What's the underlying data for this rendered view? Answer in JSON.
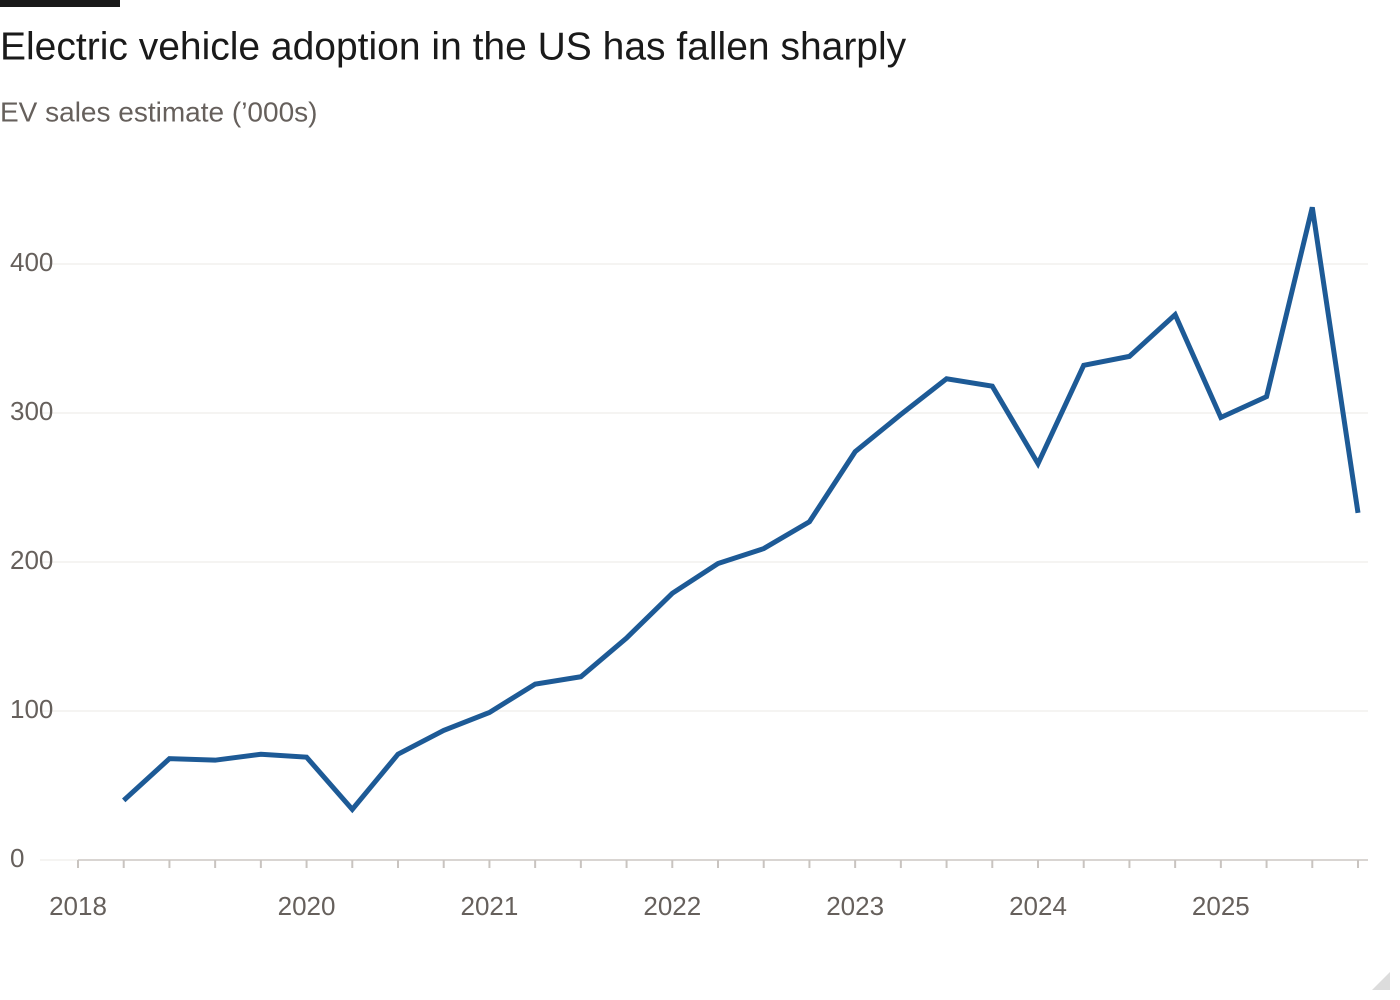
{
  "chart_data": {
    "type": "line",
    "title": "Electric vehicle adoption in the US has fallen sharply",
    "subtitle": "EV sales estimate (’000s)",
    "categories": [
      "2018",
      null,
      null,
      null,
      null,
      "2020",
      null,
      null,
      null,
      "2021",
      null,
      null,
      null,
      "2022",
      null,
      null,
      null,
      "2023",
      null,
      null,
      null,
      "2024",
      null,
      null,
      null,
      "2025",
      null,
      null,
      null
    ],
    "series": [
      {
        "color": "#1d5a96",
        "values": [
          null,
          40,
          68,
          67,
          71,
          69,
          34,
          71,
          87,
          99,
          118,
          123,
          149,
          179,
          199,
          209,
          227,
          274,
          299,
          323,
          318,
          266,
          332,
          338,
          366,
          297,
          311,
          438,
          233
        ]
      }
    ],
    "ylim": [
      0,
      440
    ],
    "yticks": [
      0,
      100,
      200,
      300,
      400
    ],
    "grid": true
  }
}
